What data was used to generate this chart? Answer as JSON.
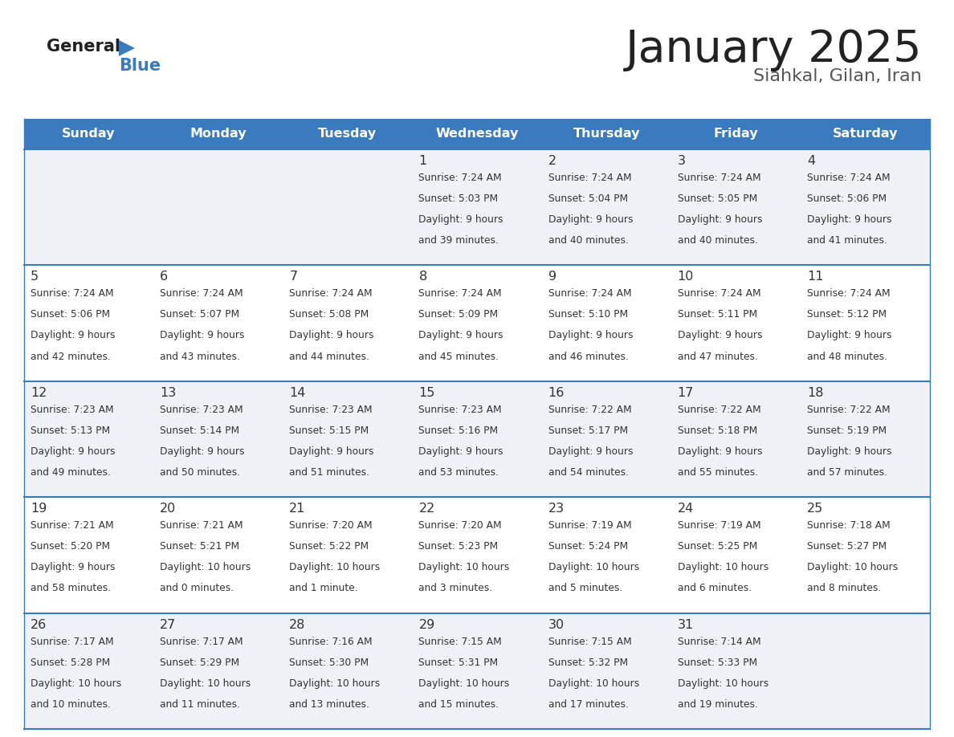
{
  "title": "January 2025",
  "subtitle": "Siahkal, Gilan, Iran",
  "days_of_week": [
    "Sunday",
    "Monday",
    "Tuesday",
    "Wednesday",
    "Thursday",
    "Friday",
    "Saturday"
  ],
  "header_bg": "#3a7abf",
  "header_text": "#ffffff",
  "cell_bg_odd": "#eef2f7",
  "cell_bg_even": "#ffffff",
  "row_line_color": "#3a7abf",
  "text_color": "#333333",
  "logo_general_color": "#222222",
  "logo_blue_color": "#3a7abf",
  "logo_triangle_color": "#3a7abf",
  "title_color": "#222222",
  "subtitle_color": "#555555",
  "calendar_data": [
    [
      null,
      null,
      null,
      {
        "day": 1,
        "sunrise": "7:24 AM",
        "sunset": "5:03 PM",
        "daylight": "9 hours and 39 minutes."
      },
      {
        "day": 2,
        "sunrise": "7:24 AM",
        "sunset": "5:04 PM",
        "daylight": "9 hours and 40 minutes."
      },
      {
        "day": 3,
        "sunrise": "7:24 AM",
        "sunset": "5:05 PM",
        "daylight": "9 hours and 40 minutes."
      },
      {
        "day": 4,
        "sunrise": "7:24 AM",
        "sunset": "5:06 PM",
        "daylight": "9 hours and 41 minutes."
      }
    ],
    [
      {
        "day": 5,
        "sunrise": "7:24 AM",
        "sunset": "5:06 PM",
        "daylight": "9 hours and 42 minutes."
      },
      {
        "day": 6,
        "sunrise": "7:24 AM",
        "sunset": "5:07 PM",
        "daylight": "9 hours and 43 minutes."
      },
      {
        "day": 7,
        "sunrise": "7:24 AM",
        "sunset": "5:08 PM",
        "daylight": "9 hours and 44 minutes."
      },
      {
        "day": 8,
        "sunrise": "7:24 AM",
        "sunset": "5:09 PM",
        "daylight": "9 hours and 45 minutes."
      },
      {
        "day": 9,
        "sunrise": "7:24 AM",
        "sunset": "5:10 PM",
        "daylight": "9 hours and 46 minutes."
      },
      {
        "day": 10,
        "sunrise": "7:24 AM",
        "sunset": "5:11 PM",
        "daylight": "9 hours and 47 minutes."
      },
      {
        "day": 11,
        "sunrise": "7:24 AM",
        "sunset": "5:12 PM",
        "daylight": "9 hours and 48 minutes."
      }
    ],
    [
      {
        "day": 12,
        "sunrise": "7:23 AM",
        "sunset": "5:13 PM",
        "daylight": "9 hours and 49 minutes."
      },
      {
        "day": 13,
        "sunrise": "7:23 AM",
        "sunset": "5:14 PM",
        "daylight": "9 hours and 50 minutes."
      },
      {
        "day": 14,
        "sunrise": "7:23 AM",
        "sunset": "5:15 PM",
        "daylight": "9 hours and 51 minutes."
      },
      {
        "day": 15,
        "sunrise": "7:23 AM",
        "sunset": "5:16 PM",
        "daylight": "9 hours and 53 minutes."
      },
      {
        "day": 16,
        "sunrise": "7:22 AM",
        "sunset": "5:17 PM",
        "daylight": "9 hours and 54 minutes."
      },
      {
        "day": 17,
        "sunrise": "7:22 AM",
        "sunset": "5:18 PM",
        "daylight": "9 hours and 55 minutes."
      },
      {
        "day": 18,
        "sunrise": "7:22 AM",
        "sunset": "5:19 PM",
        "daylight": "9 hours and 57 minutes."
      }
    ],
    [
      {
        "day": 19,
        "sunrise": "7:21 AM",
        "sunset": "5:20 PM",
        "daylight": "9 hours and 58 minutes."
      },
      {
        "day": 20,
        "sunrise": "7:21 AM",
        "sunset": "5:21 PM",
        "daylight": "10 hours and 0 minutes."
      },
      {
        "day": 21,
        "sunrise": "7:20 AM",
        "sunset": "5:22 PM",
        "daylight": "10 hours and 1 minute."
      },
      {
        "day": 22,
        "sunrise": "7:20 AM",
        "sunset": "5:23 PM",
        "daylight": "10 hours and 3 minutes."
      },
      {
        "day": 23,
        "sunrise": "7:19 AM",
        "sunset": "5:24 PM",
        "daylight": "10 hours and 5 minutes."
      },
      {
        "day": 24,
        "sunrise": "7:19 AM",
        "sunset": "5:25 PM",
        "daylight": "10 hours and 6 minutes."
      },
      {
        "day": 25,
        "sunrise": "7:18 AM",
        "sunset": "5:27 PM",
        "daylight": "10 hours and 8 minutes."
      }
    ],
    [
      {
        "day": 26,
        "sunrise": "7:17 AM",
        "sunset": "5:28 PM",
        "daylight": "10 hours and 10 minutes."
      },
      {
        "day": 27,
        "sunrise": "7:17 AM",
        "sunset": "5:29 PM",
        "daylight": "10 hours and 11 minutes."
      },
      {
        "day": 28,
        "sunrise": "7:16 AM",
        "sunset": "5:30 PM",
        "daylight": "10 hours and 13 minutes."
      },
      {
        "day": 29,
        "sunrise": "7:15 AM",
        "sunset": "5:31 PM",
        "daylight": "10 hours and 15 minutes."
      },
      {
        "day": 30,
        "sunrise": "7:15 AM",
        "sunset": "5:32 PM",
        "daylight": "10 hours and 17 minutes."
      },
      {
        "day": 31,
        "sunrise": "7:14 AM",
        "sunset": "5:33 PM",
        "daylight": "10 hours and 19 minutes."
      },
      null
    ]
  ]
}
